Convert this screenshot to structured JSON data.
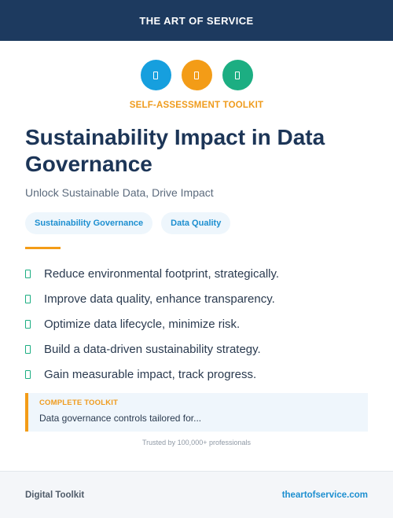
{
  "header": {
    "brand": "THE ART OF SERVICE"
  },
  "icons": [
    {
      "name": "blue-badge-icon",
      "color": "#169fde"
    },
    {
      "name": "orange-badge-icon",
      "color": "#f39c17"
    },
    {
      "name": "green-badge-icon",
      "color": "#1cae82"
    }
  ],
  "eyebrow": "SELF-ASSESSMENT TOOLKIT",
  "title": "Sustainability Impact in Data Governance",
  "subtitle": "Unlock Sustainable Data, Drive Impact",
  "tags": [
    "Sustainability Governance",
    "Data Quality"
  ],
  "benefits": [
    "Reduce environmental footprint, strategically.",
    "Improve data quality, enhance transparency.",
    "Optimize data lifecycle, minimize risk.",
    "Build a data-driven sustainability strategy.",
    "Gain measurable impact, track progress."
  ],
  "callout": {
    "label": "COMPLETE TOOLKIT",
    "text": "Data governance controls tailored for..."
  },
  "trust": "Trusted by 100,000+ professionals",
  "footer": {
    "left": "Digital Toolkit",
    "right": "theartofservice.com"
  },
  "colors": {
    "header_bg": "#1d3a5f",
    "accent_orange": "#f39c17",
    "accent_blue": "#169fde",
    "accent_green": "#1cae82"
  }
}
